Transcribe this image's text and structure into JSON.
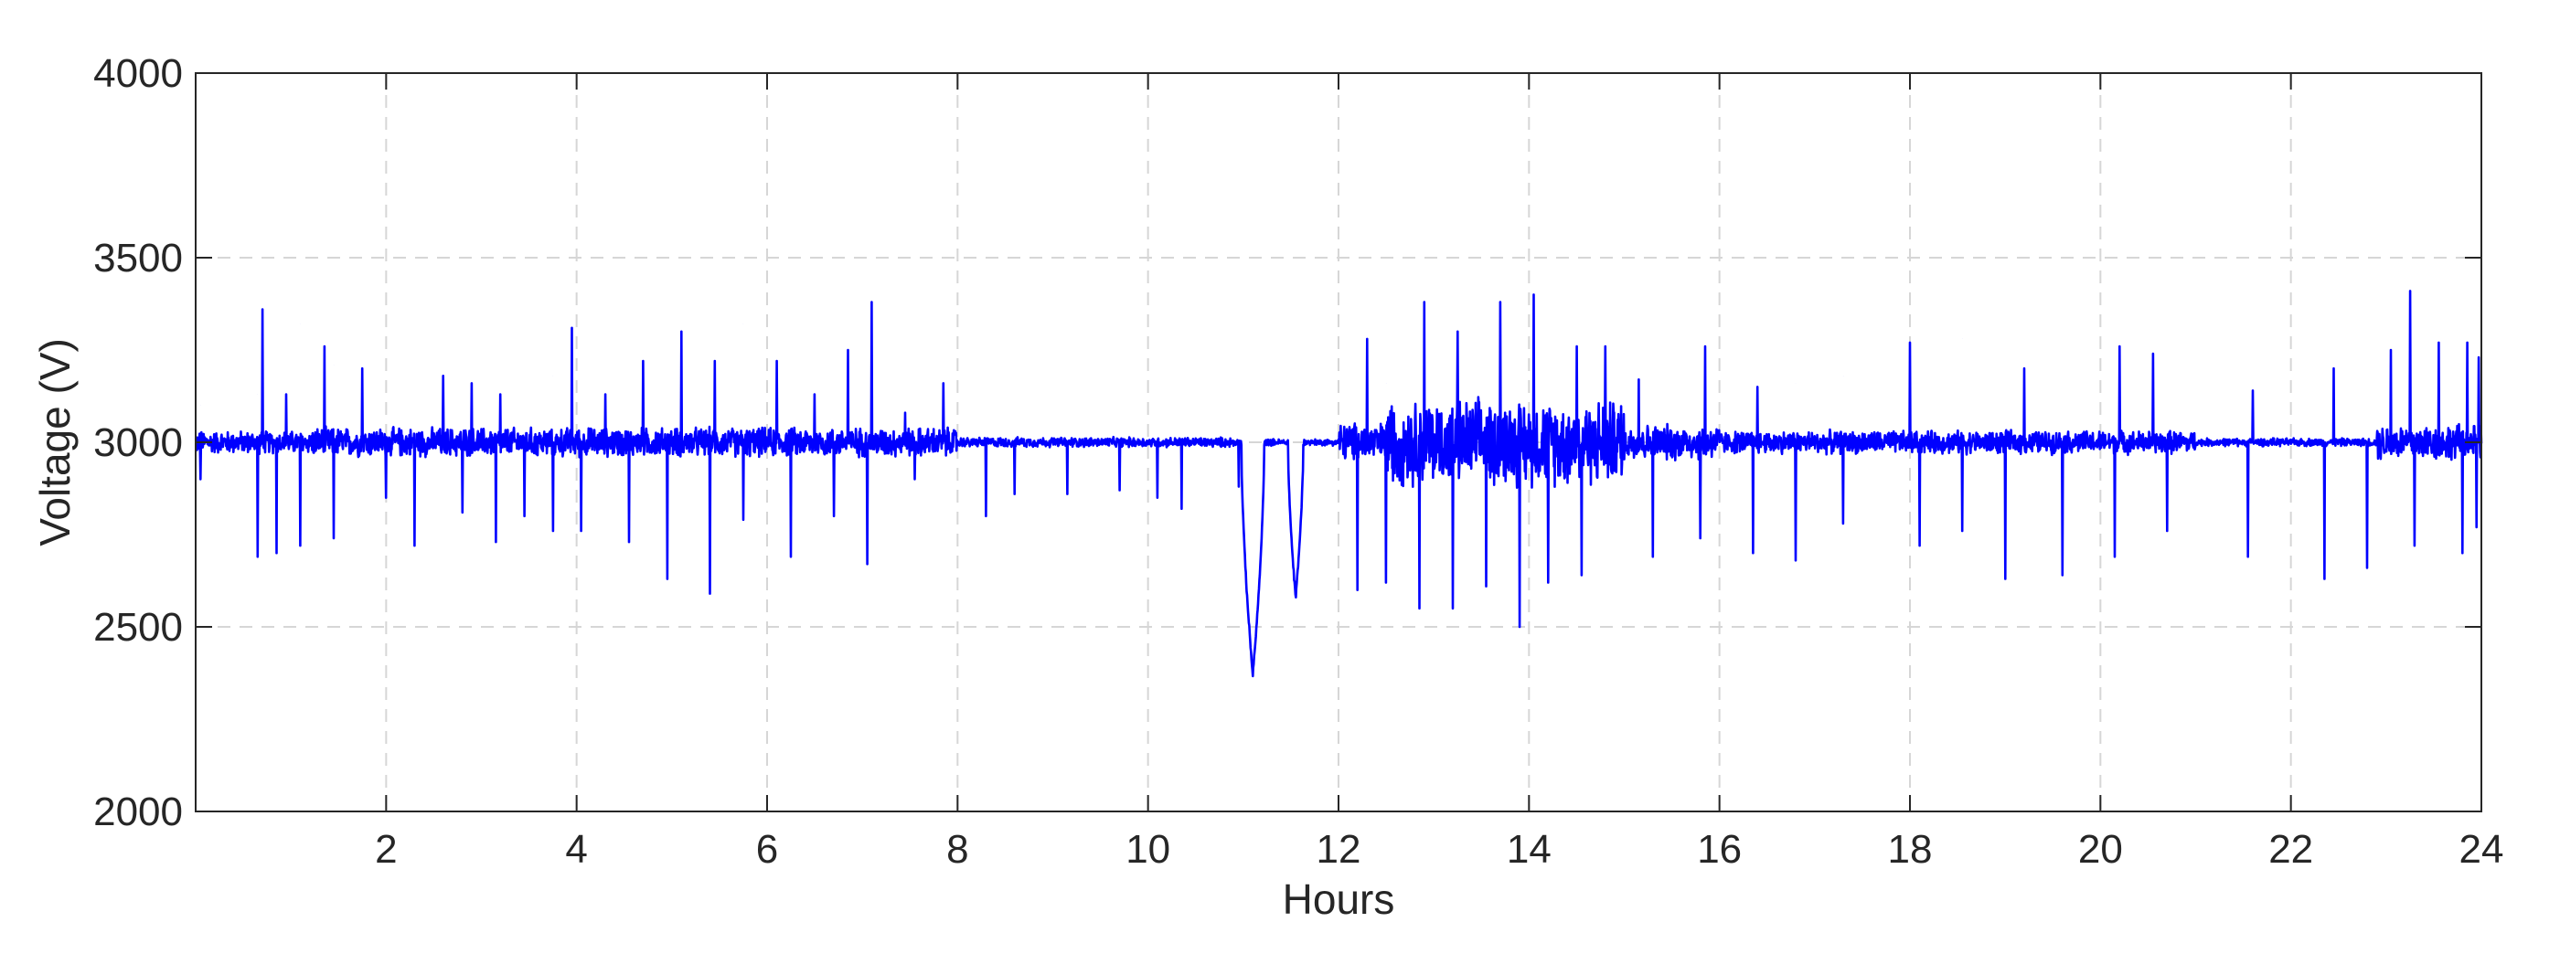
{
  "chart_data": {
    "type": "line",
    "title": "",
    "xlabel": "Hours",
    "ylabel": "Voltage (V)",
    "xlim": [
      0,
      24
    ],
    "ylim": [
      2000,
      4000
    ],
    "x_ticks": [
      2,
      4,
      6,
      8,
      10,
      12,
      14,
      16,
      18,
      20,
      22,
      24
    ],
    "x_tick_labels": [
      "2",
      "4",
      "6",
      "8",
      "10",
      "12",
      "14",
      "16",
      "18",
      "20",
      "22",
      "24"
    ],
    "y_ticks": [
      2000,
      2500,
      3000,
      3500,
      4000
    ],
    "y_tick_labels": [
      "2000",
      "2500",
      "3000",
      "3500",
      "4000"
    ],
    "grid": true,
    "line_color": "#0000ff",
    "series": [
      {
        "baseline": 3000,
        "noise_profile": [
          {
            "from": 0,
            "to": 1.2,
            "amplitude": 35
          },
          {
            "from": 1.2,
            "to": 8.0,
            "amplitude": 45
          },
          {
            "from": 8.0,
            "to": 10.9,
            "amplitude": 15
          },
          {
            "from": 10.9,
            "to": 12.0,
            "amplitude": 10
          },
          {
            "from": 12.0,
            "to": 12.5,
            "amplitude": 60
          },
          {
            "from": 12.5,
            "to": 15.0,
            "amplitude": 130
          },
          {
            "from": 15.0,
            "to": 16.0,
            "amplitude": 55
          },
          {
            "from": 16.0,
            "to": 21.0,
            "amplitude": 35
          },
          {
            "from": 21.0,
            "to": 22.9,
            "amplitude": 12
          },
          {
            "from": 22.9,
            "to": 24.0,
            "amplitude": 55
          }
        ],
        "peaks": [
          {
            "x": 0.05,
            "y": 3100
          },
          {
            "x": 0.65,
            "y": 3130
          },
          {
            "x": 0.7,
            "y": 3360
          },
          {
            "x": 0.95,
            "y": 3130
          },
          {
            "x": 1.1,
            "y": 3320
          },
          {
            "x": 1.35,
            "y": 3260
          },
          {
            "x": 1.45,
            "y": 3210
          },
          {
            "x": 1.75,
            "y": 3200
          },
          {
            "x": 2.6,
            "y": 3180
          },
          {
            "x": 2.9,
            "y": 3160
          },
          {
            "x": 3.2,
            "y": 3130
          },
          {
            "x": 3.75,
            "y": 3180
          },
          {
            "x": 3.95,
            "y": 3310
          },
          {
            "x": 4.3,
            "y": 3130
          },
          {
            "x": 4.7,
            "y": 3220
          },
          {
            "x": 5.1,
            "y": 3300
          },
          {
            "x": 5.45,
            "y": 3220
          },
          {
            "x": 5.75,
            "y": 3320
          },
          {
            "x": 6.1,
            "y": 3220
          },
          {
            "x": 6.5,
            "y": 3130
          },
          {
            "x": 6.85,
            "y": 3250
          },
          {
            "x": 7.1,
            "y": 3380
          },
          {
            "x": 7.45,
            "y": 3080
          },
          {
            "x": 7.85,
            "y": 3160
          },
          {
            "x": 12.3,
            "y": 3280
          },
          {
            "x": 12.5,
            "y": 3160
          },
          {
            "x": 12.9,
            "y": 3380
          },
          {
            "x": 13.25,
            "y": 3300
          },
          {
            "x": 13.7,
            "y": 3380
          },
          {
            "x": 14.05,
            "y": 3400
          },
          {
            "x": 14.5,
            "y": 3260
          },
          {
            "x": 14.8,
            "y": 3260
          },
          {
            "x": 15.15,
            "y": 3170
          },
          {
            "x": 15.85,
            "y": 3260
          },
          {
            "x": 16.4,
            "y": 3150
          },
          {
            "x": 16.8,
            "y": 3160
          },
          {
            "x": 17.3,
            "y": 3180
          },
          {
            "x": 18.0,
            "y": 3270
          },
          {
            "x": 18.55,
            "y": 3280
          },
          {
            "x": 19.2,
            "y": 3200
          },
          {
            "x": 20.2,
            "y": 3260
          },
          {
            "x": 20.55,
            "y": 3240
          },
          {
            "x": 21.6,
            "y": 3140
          },
          {
            "x": 22.45,
            "y": 3200
          },
          {
            "x": 23.05,
            "y": 3250
          },
          {
            "x": 23.25,
            "y": 3410
          },
          {
            "x": 23.55,
            "y": 3270
          },
          {
            "x": 23.85,
            "y": 3270
          },
          {
            "x": 23.97,
            "y": 3230
          }
        ],
        "troughs": [
          {
            "x": 0.05,
            "y": 2900
          },
          {
            "x": 0.65,
            "y": 2690
          },
          {
            "x": 0.85,
            "y": 2700
          },
          {
            "x": 1.1,
            "y": 2720
          },
          {
            "x": 1.45,
            "y": 2740
          },
          {
            "x": 2.0,
            "y": 2850
          },
          {
            "x": 2.3,
            "y": 2720
          },
          {
            "x": 2.8,
            "y": 2810
          },
          {
            "x": 3.15,
            "y": 2730
          },
          {
            "x": 3.45,
            "y": 2800
          },
          {
            "x": 3.75,
            "y": 2760
          },
          {
            "x": 4.05,
            "y": 2760
          },
          {
            "x": 4.55,
            "y": 2730
          },
          {
            "x": 4.95,
            "y": 2630
          },
          {
            "x": 5.4,
            "y": 2590
          },
          {
            "x": 5.75,
            "y": 2790
          },
          {
            "x": 6.25,
            "y": 2690
          },
          {
            "x": 6.7,
            "y": 2800
          },
          {
            "x": 7.05,
            "y": 2670
          },
          {
            "x": 7.55,
            "y": 2900
          },
          {
            "x": 8.3,
            "y": 2800
          },
          {
            "x": 8.6,
            "y": 2860
          },
          {
            "x": 9.15,
            "y": 2860
          },
          {
            "x": 9.7,
            "y": 2870
          },
          {
            "x": 10.1,
            "y": 2850
          },
          {
            "x": 10.35,
            "y": 2820
          },
          {
            "x": 10.95,
            "y": 2880
          },
          {
            "x": 11.55,
            "y": 2580
          },
          {
            "x": 12.2,
            "y": 2600
          },
          {
            "x": 12.5,
            "y": 2620
          },
          {
            "x": 12.85,
            "y": 2550
          },
          {
            "x": 13.2,
            "y": 2550
          },
          {
            "x": 13.55,
            "y": 2610
          },
          {
            "x": 13.9,
            "y": 2500
          },
          {
            "x": 14.2,
            "y": 2620
          },
          {
            "x": 14.55,
            "y": 2640
          },
          {
            "x": 15.3,
            "y": 2690
          },
          {
            "x": 15.8,
            "y": 2740
          },
          {
            "x": 16.35,
            "y": 2700
          },
          {
            "x": 16.8,
            "y": 2680
          },
          {
            "x": 17.3,
            "y": 2780
          },
          {
            "x": 18.1,
            "y": 2720
          },
          {
            "x": 18.55,
            "y": 2760
          },
          {
            "x": 19.0,
            "y": 2630
          },
          {
            "x": 19.6,
            "y": 2640
          },
          {
            "x": 20.15,
            "y": 2690
          },
          {
            "x": 20.7,
            "y": 2760
          },
          {
            "x": 21.55,
            "y": 2690
          },
          {
            "x": 22.35,
            "y": 2630
          },
          {
            "x": 22.8,
            "y": 2660
          },
          {
            "x": 23.3,
            "y": 2720
          },
          {
            "x": 23.8,
            "y": 2700
          },
          {
            "x": 23.95,
            "y": 2770
          }
        ],
        "dips": [
          {
            "x": 11.1,
            "y": 2370,
            "width": 0.12
          },
          {
            "x": 11.55,
            "y": 2580,
            "width": 0.08
          }
        ]
      }
    ]
  }
}
